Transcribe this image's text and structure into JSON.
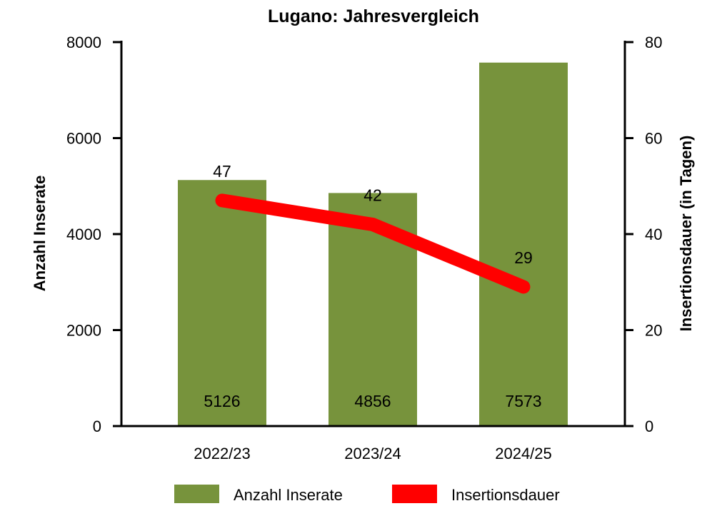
{
  "chart_data": {
    "type": "bar",
    "title": "Lugano: Jahresvergleich",
    "categories": [
      "2022/23",
      "2023/24",
      "2024/25"
    ],
    "series": [
      {
        "name": "Anzahl Inserate",
        "type": "bar",
        "axis": "left",
        "color": "#77933c",
        "values": [
          5126,
          4856,
          7573
        ]
      },
      {
        "name": "Insertionsdauer",
        "type": "line",
        "axis": "right",
        "color": "#ff0000",
        "values": [
          47,
          42,
          29
        ]
      }
    ],
    "ylabel": "Anzahl Inserate",
    "ylim": [
      0,
      8000
    ],
    "yticks": [
      "0",
      "2000",
      "4000",
      "6000",
      "8000"
    ],
    "y2label": "Insertionsdauer (in Tagen)",
    "y2lim": [
      0,
      80
    ],
    "y2ticks": [
      "0",
      "20",
      "40",
      "60",
      "80"
    ],
    "grid": false,
    "legend_position": "bottom"
  }
}
